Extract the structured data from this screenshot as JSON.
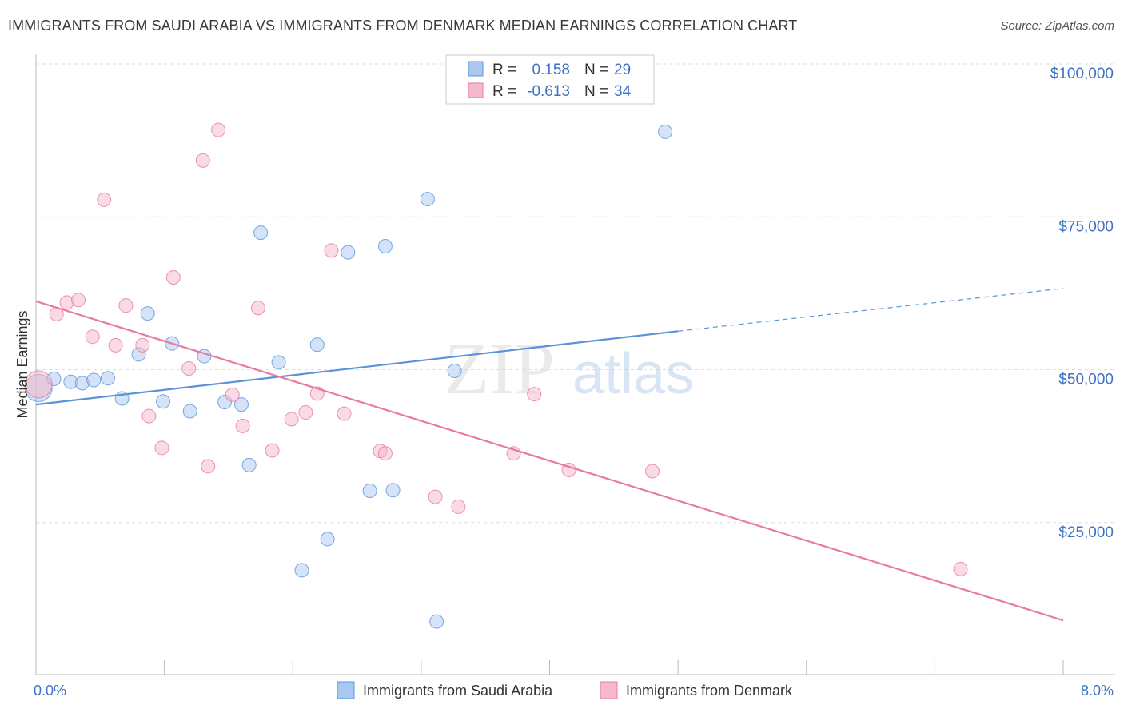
{
  "title": "IMMIGRANTS FROM SAUDI ARABIA VS IMMIGRANTS FROM DENMARK MEDIAN EARNINGS CORRELATION CHART",
  "source": "Source: ZipAtlas.com",
  "watermark": {
    "zip": "ZIP",
    "atlas": "atlas"
  },
  "legend": {
    "rows": [
      {
        "r_label": "R =",
        "r_value": "0.158",
        "n_label": "N =",
        "n_value": "29",
        "color": "#a9c8f0"
      },
      {
        "r_label": "R =",
        "r_value": "-0.613",
        "n_label": "N =",
        "n_value": "34",
        "color": "#f6b8cb"
      }
    ]
  },
  "bottom_legend": [
    {
      "label": "Immigrants from Saudi Arabia",
      "color": "#a9c8f0"
    },
    {
      "label": "Immigrants from Denmark",
      "color": "#f6b8cb"
    }
  ],
  "chart_data": {
    "type": "scatter",
    "xlabel": "",
    "ylabel": "Median Earnings",
    "xlim": [
      0,
      8
    ],
    "ylim": [
      0,
      105000
    ],
    "x_tick_labels": [
      "0.0%",
      "8.0%"
    ],
    "y_ticks": [
      25000,
      50000,
      75000,
      100000
    ],
    "y_tick_labels": [
      "$25,000",
      "$50,000",
      "$75,000",
      "$100,000"
    ],
    "grid": true,
    "series": [
      {
        "name": "Immigrants from Saudi Arabia",
        "color": "#5b93d9",
        "fill": "#a9c8f0",
        "points": [
          [
            0.02,
            47000
          ],
          [
            0.14,
            48500
          ],
          [
            0.27,
            48000
          ],
          [
            0.36,
            47800
          ],
          [
            0.45,
            48300
          ],
          [
            0.56,
            48600
          ],
          [
            0.67,
            45300
          ],
          [
            0.8,
            52500
          ],
          [
            0.87,
            59200
          ],
          [
            0.99,
            44800
          ],
          [
            1.06,
            54300
          ],
          [
            1.2,
            43200
          ],
          [
            1.31,
            52200
          ],
          [
            1.47,
            44700
          ],
          [
            1.6,
            44300
          ],
          [
            1.66,
            34400
          ],
          [
            1.75,
            72400
          ],
          [
            1.89,
            51200
          ],
          [
            2.07,
            17200
          ],
          [
            2.19,
            54100
          ],
          [
            2.27,
            22300
          ],
          [
            2.43,
            69200
          ],
          [
            2.6,
            30200
          ],
          [
            2.72,
            70200
          ],
          [
            2.78,
            30300
          ],
          [
            3.05,
            77900
          ],
          [
            3.12,
            8800
          ],
          [
            3.26,
            49800
          ],
          [
            4.9,
            88900
          ]
        ],
        "trend": {
          "x0": 0,
          "y0": 44300,
          "x1": 5.0,
          "y1": 56300,
          "x_dash_end": 8.0,
          "y_dash_end": 63300
        }
      },
      {
        "name": "Immigrants from Denmark",
        "color": "#e77ba0",
        "fill": "#f6b8cb",
        "points": [
          [
            0.02,
            47600
          ],
          [
            0.16,
            59100
          ],
          [
            0.24,
            61000
          ],
          [
            0.33,
            61400
          ],
          [
            0.44,
            55400
          ],
          [
            0.53,
            77800
          ],
          [
            0.62,
            54000
          ],
          [
            0.7,
            60500
          ],
          [
            0.83,
            54000
          ],
          [
            0.88,
            42400
          ],
          [
            0.98,
            37200
          ],
          [
            1.07,
            65100
          ],
          [
            1.19,
            50200
          ],
          [
            1.3,
            84200
          ],
          [
            1.34,
            34200
          ],
          [
            1.42,
            89200
          ],
          [
            1.53,
            45900
          ],
          [
            1.61,
            40800
          ],
          [
            1.73,
            60100
          ],
          [
            1.84,
            36800
          ],
          [
            1.99,
            41900
          ],
          [
            2.1,
            43000
          ],
          [
            2.19,
            46100
          ],
          [
            2.3,
            69500
          ],
          [
            2.4,
            42800
          ],
          [
            2.68,
            36700
          ],
          [
            2.72,
            36300
          ],
          [
            3.11,
            29200
          ],
          [
            3.29,
            27600
          ],
          [
            3.72,
            36300
          ],
          [
            3.88,
            46000
          ],
          [
            4.15,
            33600
          ],
          [
            4.8,
            33400
          ],
          [
            7.2,
            17400
          ]
        ],
        "trend": {
          "x0": 0,
          "y0": 61200,
          "x1": 8.0,
          "y1": 9000
        }
      }
    ]
  }
}
